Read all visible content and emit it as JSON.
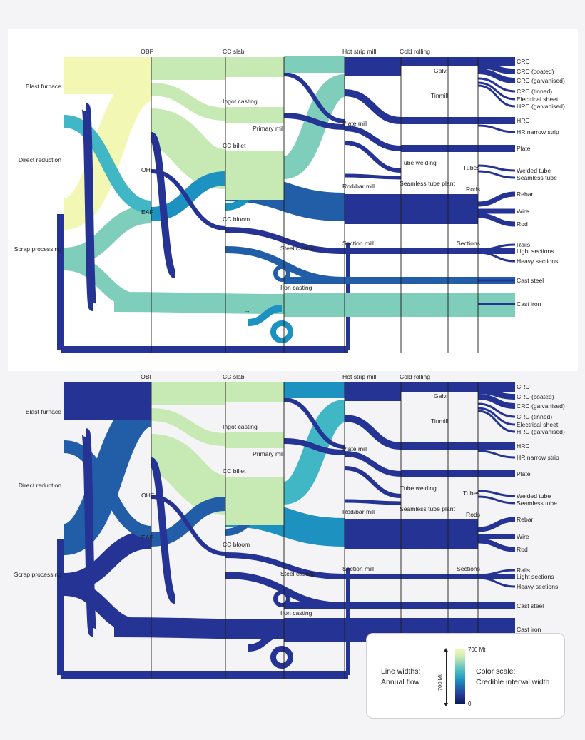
{
  "diagram": {
    "process_labels": {
      "obf": "OBF",
      "ohf": "OHF",
      "eaf": "EAF",
      "cc_slab": "CC slab",
      "ingot_casting": "Ingot casting",
      "primary_mill": "Primary mill",
      "cc_billet": "CC billet",
      "cc_bloom": "CC bloom",
      "steel_casting": "Steel casting",
      "iron_casting": "Iron casting",
      "hot_strip_mill": "Hot strip mill",
      "plate_mill": "Plate mill",
      "rod_bar_mill": "Rod/bar mill",
      "section_mill": "Section mill",
      "cold_rolling": "Cold rolling",
      "galv": "Galv.",
      "tinmill": "Tinmill",
      "tube_welding": "Tube welding",
      "seamless_tube_plant": "Seamless tube plant",
      "tubes": "Tubes",
      "rods": "Rods",
      "sections": "Sections"
    },
    "source_labels": [
      "Blast furnace",
      "Direct reduction",
      "Scrap processing"
    ],
    "product_labels": [
      "CRC",
      "CRC (coated)",
      "CRC (galvanised)",
      "CRC (tinned)",
      "Electrical sheet",
      "HRC (galvanised)",
      "HRC",
      "HR narrow strip",
      "Plate",
      "Welded tube",
      "Seamless tube",
      "Rebar",
      "Wire",
      "Rod",
      "Rails",
      "Light sections",
      "Heavy sections",
      "Cast steel",
      "Cast iron"
    ],
    "arrow_glyph": "→"
  },
  "legend": {
    "line_widths_label": "Line widths:",
    "line_widths_value": "Annual flow",
    "scale_label": "700 Mt",
    "color_scale_label": "Color scale:",
    "color_scale_value": "Credible interval width",
    "color_max": "700 Mt",
    "color_min": "0"
  },
  "colors": {
    "c0": "#081d58",
    "c1": "#253494",
    "c2": "#225ea8",
    "c3": "#1d91c0",
    "c4": "#41b6c4",
    "c5": "#7fcdbb",
    "c6": "#c7e9b4",
    "c7": "#f2f8b4",
    "panel_top_bg": "#ffffff",
    "panel_bottom_bg": "#f4f4f6"
  }
}
